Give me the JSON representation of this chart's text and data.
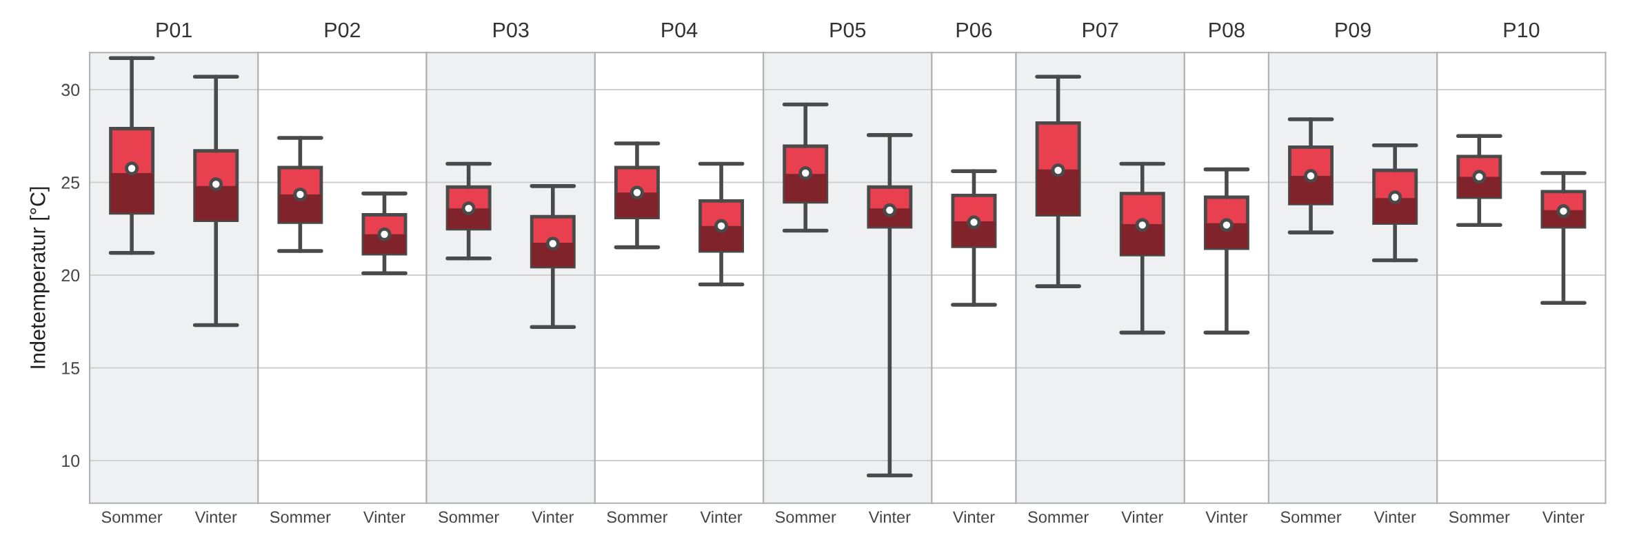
{
  "chart_data": [
    {
      "type": "box",
      "title": "P01",
      "ylabel": "Indetemperatur [°C]",
      "categories": [
        "Sommer",
        "Vinter"
      ],
      "ylim": [
        7.7,
        32
      ],
      "yticks": [
        10,
        15,
        20,
        25,
        30
      ],
      "grid": "y",
      "series": [
        {
          "color": "#e8404f",
          "boxes": [
            {
              "low": 21.2,
              "q1": 23.35,
              "median": 25.5,
              "q3": 27.9,
              "high": 31.7,
              "mean": 25.75
            },
            {
              "low": 17.3,
              "q1": 22.95,
              "median": 24.8,
              "q3": 26.7,
              "high": 30.7,
              "mean": 24.9
            }
          ]
        }
      ]
    },
    {
      "type": "box",
      "title": "P02",
      "categories": [
        "Sommer",
        "Vinter"
      ],
      "ylim": [
        7.7,
        32
      ],
      "yticks": [
        10,
        15,
        20,
        25,
        30
      ],
      "grid": "y",
      "tick_labels": "x",
      "series": [
        {
          "color": "#e8404f",
          "boxes": [
            {
              "low": 21.3,
              "q1": 22.85,
              "median": 24.35,
              "q3": 25.8,
              "high": 27.4,
              "mean": 24.35
            },
            {
              "low": 20.1,
              "q1": 21.15,
              "median": 22.2,
              "q3": 23.25,
              "high": 24.4,
              "mean": 22.2
            }
          ]
        }
      ]
    },
    {
      "type": "box",
      "title": "P03",
      "categories": [
        "Sommer",
        "Vinter"
      ],
      "ylim": [
        7.7,
        32
      ],
      "yticks": [
        10,
        15,
        20,
        25,
        30
      ],
      "grid": "y",
      "tick_labels": "x",
      "series": [
        {
          "color": "#e8404f",
          "boxes": [
            {
              "low": 20.9,
              "q1": 22.5,
              "median": 23.6,
              "q3": 24.75,
              "high": 26.0,
              "mean": 23.6
            },
            {
              "low": 17.2,
              "q1": 20.45,
              "median": 21.75,
              "q3": 23.15,
              "high": 24.8,
              "mean": 21.7
            }
          ]
        }
      ]
    },
    {
      "type": "box",
      "title": "P04",
      "categories": [
        "Sommer",
        "Vinter"
      ],
      "ylim": [
        7.7,
        32
      ],
      "yticks": [
        10,
        15,
        20,
        25,
        30
      ],
      "grid": "y",
      "tick_labels": "x",
      "series": [
        {
          "color": "#e8404f",
          "boxes": [
            {
              "low": 21.5,
              "q1": 23.1,
              "median": 24.45,
              "q3": 25.8,
              "high": 27.1,
              "mean": 24.45
            },
            {
              "low": 19.5,
              "q1": 21.3,
              "median": 22.65,
              "q3": 24.0,
              "high": 26.0,
              "mean": 22.65
            }
          ]
        }
      ]
    },
    {
      "type": "box",
      "title": "P05",
      "categories": [
        "Sommer",
        "Vinter"
      ],
      "ylim": [
        7.7,
        32
      ],
      "yticks": [
        10,
        15,
        20,
        25,
        30
      ],
      "grid": "y",
      "tick_labels": "x",
      "series": [
        {
          "color": "#e8404f",
          "boxes": [
            {
              "low": 22.4,
              "q1": 23.95,
              "median": 25.45,
              "q3": 26.95,
              "high": 29.2,
              "mean": 25.5
            },
            {
              "low": 9.2,
              "q1": 22.6,
              "median": 23.6,
              "q3": 24.75,
              "high": 27.55,
              "mean": 23.5
            }
          ]
        }
      ]
    },
    {
      "type": "box",
      "title": "P06",
      "categories": [
        "Vinter"
      ],
      "ylim": [
        7.7,
        32
      ],
      "yticks": [
        10,
        15,
        20,
        25,
        30
      ],
      "grid": "y",
      "tick_labels": "x",
      "series": [
        {
          "color": "#e8404f",
          "boxes": [
            {
              "low": 18.4,
              "q1": 21.55,
              "median": 22.9,
              "q3": 24.3,
              "high": 25.6,
              "mean": 22.85
            }
          ]
        }
      ]
    },
    {
      "type": "box",
      "title": "P07",
      "categories": [
        "Sommer",
        "Vinter"
      ],
      "ylim": [
        7.7,
        32
      ],
      "yticks": [
        10,
        15,
        20,
        25,
        30
      ],
      "grid": "y",
      "tick_labels": "x",
      "series": [
        {
          "color": "#e8404f",
          "boxes": [
            {
              "low": 19.4,
              "q1": 23.25,
              "median": 25.7,
              "q3": 28.2,
              "high": 30.7,
              "mean": 25.65
            },
            {
              "low": 16.9,
              "q1": 21.1,
              "median": 22.75,
              "q3": 24.4,
              "high": 26.0,
              "mean": 22.7
            }
          ]
        }
      ]
    },
    {
      "type": "box",
      "title": "P08",
      "categories": [
        "Vinter"
      ],
      "ylim": [
        7.7,
        32
      ],
      "yticks": [
        10,
        15,
        20,
        25,
        30
      ],
      "grid": "y",
      "tick_labels": "x",
      "series": [
        {
          "color": "#e8404f",
          "boxes": [
            {
              "low": 16.9,
              "q1": 21.45,
              "median": 22.8,
              "q3": 24.2,
              "high": 25.7,
              "mean": 22.7
            }
          ]
        }
      ]
    },
    {
      "type": "box",
      "title": "P09",
      "categories": [
        "Sommer",
        "Vinter"
      ],
      "ylim": [
        7.7,
        32
      ],
      "yticks": [
        10,
        15,
        20,
        25,
        30
      ],
      "grid": "y",
      "tick_labels": "x",
      "series": [
        {
          "color": "#e8404f",
          "boxes": [
            {
              "low": 22.3,
              "q1": 23.85,
              "median": 25.35,
              "q3": 26.9,
              "high": 28.4,
              "mean": 25.35
            },
            {
              "low": 20.8,
              "q1": 22.8,
              "median": 24.15,
              "q3": 25.65,
              "high": 27.0,
              "mean": 24.2
            }
          ]
        }
      ]
    },
    {
      "type": "box",
      "title": "P10",
      "categories": [
        "Sommer",
        "Vinter"
      ],
      "ylim": [
        7.7,
        32
      ],
      "yticks": [
        10,
        15,
        20,
        25,
        30
      ],
      "grid": "y",
      "tick_labels": "x",
      "series": [
        {
          "color": "#e8404f",
          "boxes": [
            {
              "low": 22.7,
              "q1": 24.2,
              "median": 25.3,
              "q3": 26.4,
              "high": 27.5,
              "mean": 25.3
            },
            {
              "low": 18.5,
              "q1": 22.6,
              "median": 23.5,
              "q3": 24.5,
              "high": 25.5,
              "mean": 23.45
            }
          ]
        }
      ]
    }
  ]
}
